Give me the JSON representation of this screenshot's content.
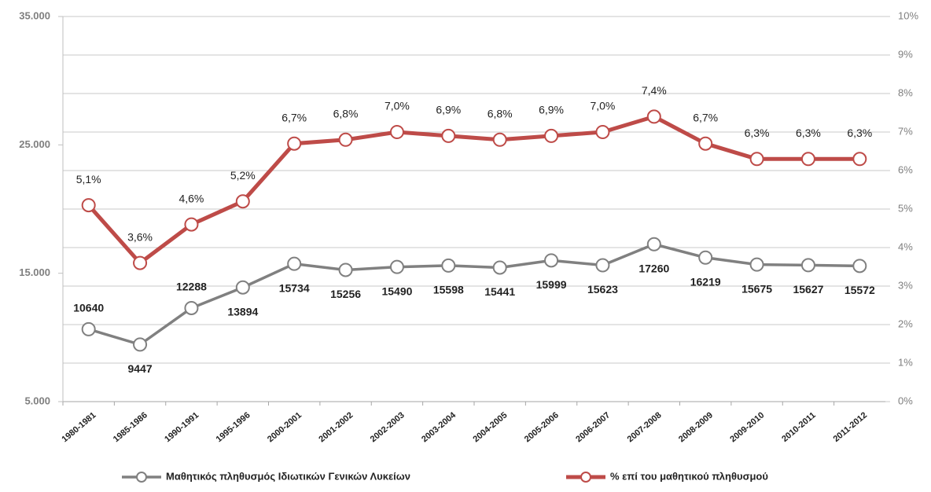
{
  "chart_data": {
    "type": "line",
    "categories": [
      "1980-1981",
      "1985-1986",
      "1990-1991",
      "1995-1996",
      "2000-2001",
      "2001-2002",
      "2002-2003",
      "2003-2004",
      "2004-2005",
      "2005-2006",
      "2006-2007",
      "2007-2008",
      "2008-2009",
      "2009-2010",
      "2010-2011",
      "2011-2012"
    ],
    "ylim": [
      5000,
      35000
    ],
    "yticks": [
      {
        "value": 5000,
        "label": "5.000"
      },
      {
        "value": 15000,
        "label": "15.000"
      },
      {
        "value": 25000,
        "label": "25.000"
      },
      {
        "value": 35000,
        "label": "35.000"
      }
    ],
    "y2lim": [
      0,
      10
    ],
    "y2ticks": [
      {
        "value": 0,
        "label": "0%"
      },
      {
        "value": 1,
        "label": "1%"
      },
      {
        "value": 2,
        "label": "2%"
      },
      {
        "value": 3,
        "label": "3%"
      },
      {
        "value": 4,
        "label": "4%"
      },
      {
        "value": 5,
        "label": "5%"
      },
      {
        "value": 6,
        "label": "6%"
      },
      {
        "value": 7,
        "label": "7%"
      },
      {
        "value": 8,
        "label": "8%"
      },
      {
        "value": 9,
        "label": "9%"
      },
      {
        "value": 10,
        "label": "10%"
      }
    ],
    "grid": true,
    "legend": "bottom",
    "series": [
      {
        "name": "Μαθητικός πληθυσμός Ιδιωτικών Γενικών Λυκείων",
        "color": "#808080",
        "values": [
          10640,
          9447,
          12288,
          13894,
          15734,
          15256,
          15490,
          15598,
          15441,
          15999,
          15623,
          17260,
          16219,
          15675,
          15627,
          15572
        ]
      },
      {
        "name": "% επί του μαθητικού πληθυσμού",
        "color": "#be4b48",
        "axis": "y2",
        "values": [
          5.1,
          3.6,
          4.6,
          5.2,
          6.7,
          6.8,
          7.0,
          6.9,
          6.8,
          6.9,
          7.0,
          7.4,
          6.7,
          6.3,
          6.3,
          6.3
        ],
        "value_labels": [
          "5,1%",
          "3,6%",
          "4,6%",
          "5,2%",
          "6,7%",
          "6,8%",
          "7,0%",
          "6,9%",
          "6,8%",
          "6,9%",
          "7,0%",
          "7,4%",
          "6,7%",
          "6,3%",
          "6,3%",
          "6,3%"
        ]
      }
    ]
  }
}
